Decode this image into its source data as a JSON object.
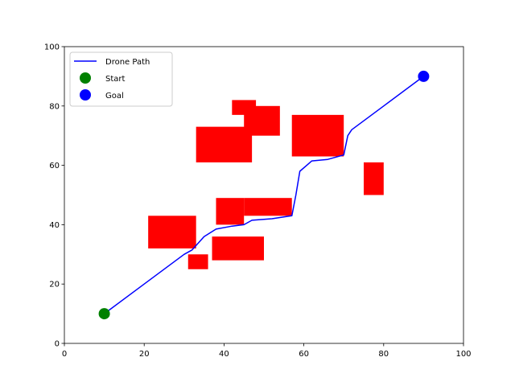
{
  "chart_data": {
    "type": "line",
    "title": "",
    "xlabel": "",
    "ylabel": "",
    "xlim": [
      0,
      100
    ],
    "ylim": [
      0,
      100
    ],
    "xticks": [
      0,
      20,
      40,
      60,
      80,
      100
    ],
    "yticks": [
      0,
      20,
      40,
      60,
      80,
      100
    ],
    "grid": false,
    "legend_position": "top-left",
    "obstacles": [
      {
        "x": 21,
        "y": 32,
        "width": 12,
        "height": 11
      },
      {
        "x": 31,
        "y": 25,
        "width": 5,
        "height": 5
      },
      {
        "x": 37,
        "y": 28,
        "width": 13,
        "height": 8
      },
      {
        "x": 38,
        "y": 40,
        "width": 7,
        "height": 9
      },
      {
        "x": 45,
        "y": 43,
        "width": 12,
        "height": 6
      },
      {
        "x": 33,
        "y": 61,
        "width": 14,
        "height": 12
      },
      {
        "x": 42,
        "y": 77,
        "width": 6,
        "height": 5
      },
      {
        "x": 45,
        "y": 70,
        "width": 9,
        "height": 10
      },
      {
        "x": 57,
        "y": 63,
        "width": 13,
        "height": 14
      },
      {
        "x": 75,
        "y": 50,
        "width": 5,
        "height": 11
      }
    ],
    "series": [
      {
        "name": "Drone Path",
        "kind": "line",
        "color": "#0000ff",
        "x": [
          10,
          20,
          30,
          32,
          33,
          35,
          38,
          42,
          45,
          47,
          52,
          57,
          58,
          59,
          62,
          66,
          70,
          71,
          72,
          80,
          90
        ],
        "y": [
          10,
          20,
          30,
          31.5,
          33,
          36,
          38.5,
          39.5,
          40,
          41.5,
          42,
          43,
          50,
          58,
          61.5,
          62,
          63.5,
          70,
          72,
          80,
          90
        ]
      },
      {
        "name": "Start",
        "kind": "marker",
        "color": "#008000",
        "x": [
          10
        ],
        "y": [
          10
        ]
      },
      {
        "name": "Goal",
        "kind": "marker",
        "color": "#0000ff",
        "x": [
          90
        ],
        "y": [
          90
        ]
      }
    ],
    "obstacle_color": "#ff0000"
  },
  "legend": {
    "items": [
      {
        "label": "Drone Path",
        "type": "line",
        "color": "#0000ff"
      },
      {
        "label": "Start",
        "type": "marker",
        "color": "#008000"
      },
      {
        "label": "Goal",
        "type": "marker",
        "color": "#0000ff"
      }
    ]
  }
}
